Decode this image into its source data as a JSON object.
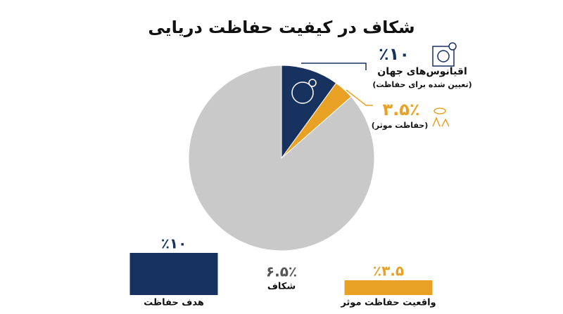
{
  "chart_data": [
    {
      "type": "pie",
      "title": "شکاف در کیفیت حفاظت دریایی",
      "categories": [
        "اقیانوس‌های جهان",
        "(حفاظت موثر)",
        null
      ],
      "notes": [
        "(تعیین شده برای حفاظت)",
        null,
        null
      ],
      "values": [
        10,
        3.5,
        86.5
      ],
      "value_labels": [
        "٪۱۰",
        "۳.۵٪",
        null
      ],
      "colors": [
        "#17325e",
        "#e8a124",
        "#c9c9c9"
      ]
    },
    {
      "type": "bar",
      "categories": [
        "هدف حفاظت",
        "شکاف",
        "واقعیت حفاظت موثر"
      ],
      "values": [
        10,
        6.5,
        3.5
      ],
      "value_labels": [
        "٪۱۰",
        "۶.۵٪",
        "٪۳.۵"
      ],
      "colors": [
        "#17325e",
        "transparent",
        "#e8a124"
      ],
      "ylim": [
        0,
        10
      ]
    }
  ]
}
